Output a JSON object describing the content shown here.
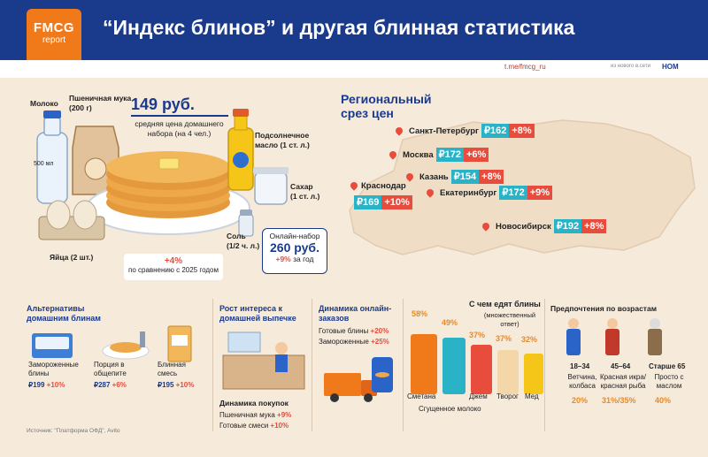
{
  "header": {
    "logo_top": "FMCG",
    "logo_bottom": "report",
    "title": "“Индекс блинов” и другая блинная статистика"
  },
  "links": {
    "telegram": "t.me/fmcg_ru",
    "partner": "из нового в.сети",
    "partner_logo": "НОМ"
  },
  "ingredients": {
    "milk": "Молоко",
    "milk_pack": "500 мл",
    "flour": "Пшеничная мука\n(200 г)",
    "oil": "Подсолнечное\nмасло (1 ст. л.)",
    "sugar": "Сахар\n(1 ст. л.)",
    "salt": "Соль\n(1/2 ч. л.)",
    "eggs": "Яйца (2 шт.)"
  },
  "basket": {
    "price": "149 руб.",
    "caption": "средняя цена домашнего набора (на 4 чел.)",
    "compare_pct": "+4%",
    "compare_text": "по сравнению с 2025 годом"
  },
  "online": {
    "label": "Онлайн-набор",
    "price": "260 руб.",
    "growth_pct": "+9%",
    "growth_text": "за год"
  },
  "regional": {
    "title": "Региональный срез цен",
    "cities": [
      {
        "name": "Санкт-Петербург",
        "price": "₽162",
        "change": "+8%"
      },
      {
        "name": "Москва",
        "price": "₽172",
        "change": "+6%"
      },
      {
        "name": "Казань",
        "price": "₽154",
        "change": "+8%"
      },
      {
        "name": "Краснодар",
        "price": "₽169",
        "change": "+10%"
      },
      {
        "name": "Екатеринбург",
        "price": "₽172",
        "change": "+9%"
      },
      {
        "name": "Новосибирск",
        "price": "₽192",
        "change": "+8%"
      }
    ]
  },
  "alternatives": {
    "title": "Альтернативы домашним блинам",
    "items": [
      {
        "label": "Замороженные блины",
        "price": "₽199",
        "change": "+10%"
      },
      {
        "label": "Порция в общепите",
        "price": "₽287",
        "change": "+6%"
      },
      {
        "label": "Блинная смесь",
        "price": "₽195",
        "change": "+10%"
      }
    ]
  },
  "homebaking": {
    "title": "Рост интереса к домашней выпечке",
    "sub_title": "Динамика покупок",
    "rows": [
      {
        "label": "Пшеничная мука",
        "change": "+9%"
      },
      {
        "label": "Готовые смеси",
        "change": "+10%"
      }
    ]
  },
  "online_orders": {
    "title": "Динамика онлайн-заказов",
    "rows": [
      {
        "label": "Готовые блины",
        "change": "+20%"
      },
      {
        "label": "Замороженные",
        "change": "+25%"
      }
    ]
  },
  "toppings": {
    "title": "С чем едят блины",
    "subtitle": "(множественный ответ)",
    "items": [
      {
        "label": "Сметана",
        "value": "58%"
      },
      {
        "label": "Сгущенное молоко",
        "value": "49%"
      },
      {
        "label": "Джем",
        "value": "37%"
      },
      {
        "label": "Творог",
        "value": "37%"
      },
      {
        "label": "Мед",
        "value": "32%"
      }
    ]
  },
  "ages": {
    "title": "Предпочтения по возрастам",
    "groups": [
      {
        "age": "18–34",
        "pref": "Ветчина, колбаса",
        "value": "20%"
      },
      {
        "age": "45–64",
        "pref": "Красная икра/ красная рыба",
        "value": "31%/35%"
      },
      {
        "age": "Старше 65",
        "pref": "Просто с маслом",
        "value": "40%"
      }
    ]
  },
  "source": "Источник: \"Платформа ОФД\", Avito",
  "colors": {
    "navy": "#1a3a8c",
    "orange": "#f07a1a",
    "red": "#e74c3c",
    "teal": "#2ab3c7",
    "beige": "#f6eadb"
  }
}
